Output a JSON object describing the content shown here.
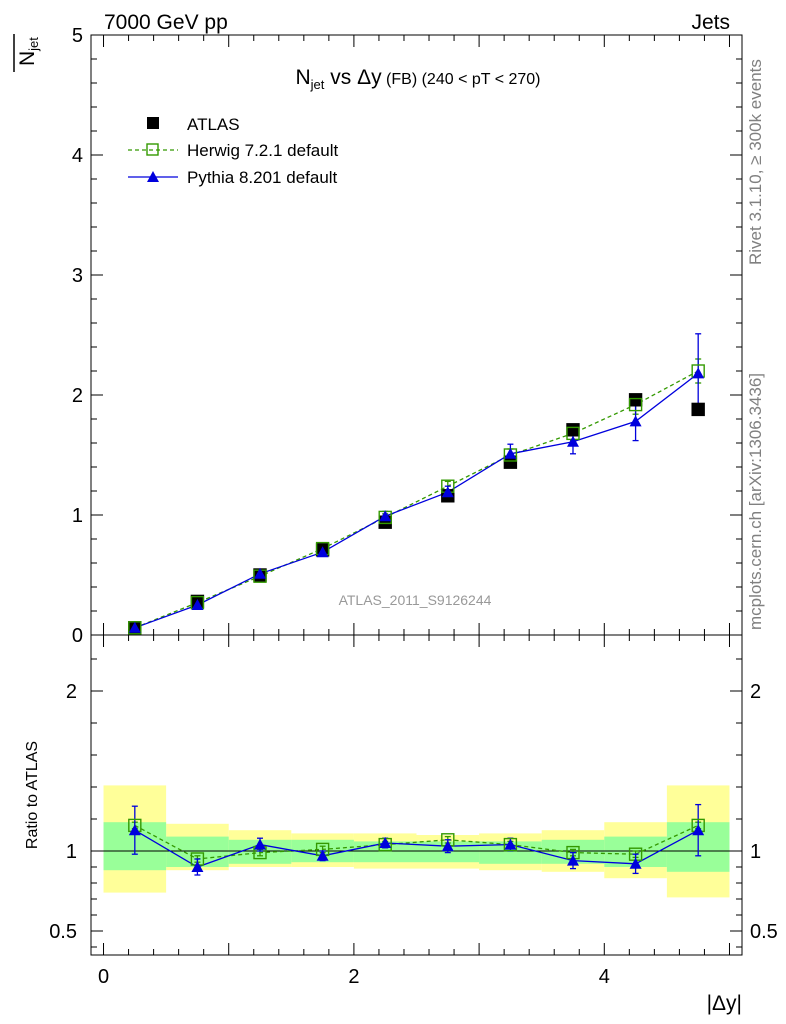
{
  "header": {
    "left": "7000 GeV pp",
    "right": "Jets"
  },
  "title": {
    "main": "N",
    "main_sub": "jet",
    "vs": " vs Δy",
    "small": " (FB) (240 < pT < 270)"
  },
  "ylabel_top": {
    "main": "N",
    "sub": "jet"
  },
  "ylabel_ratio": "Ratio to ATLAS",
  "xlabel": "|Δy|",
  "side_text_top": "Rivet 3.1.10, ≥ 300k events",
  "side_text_bottom": "mcplots.cern.ch [arXiv:1306.3436]",
  "watermark": "ATLAS_2011_S9126244",
  "legend": [
    {
      "label": "ATLAS"
    },
    {
      "label": "Herwig 7.2.1 default"
    },
    {
      "label": "Pythia 8.201 default"
    }
  ],
  "colors": {
    "atlas": "#000000",
    "herwig": "#339900",
    "pythia": "#0000dd",
    "band_outer": "#ffff99",
    "band_inner": "#99ff99"
  },
  "chart_data": {
    "type": "scatter",
    "x_edges": [
      0,
      0.5,
      1,
      1.5,
      2,
      2.5,
      3,
      3.5,
      4,
      4.5,
      5
    ],
    "x": [
      0.25,
      0.75,
      1.25,
      1.75,
      2.25,
      2.75,
      3.25,
      3.75,
      4.25,
      4.75
    ],
    "xlim": [
      -0.1,
      5.1
    ],
    "top_panel": {
      "ylim": [
        0,
        5
      ],
      "yticks": [
        "0",
        "1",
        "2",
        "3",
        "4",
        "5"
      ],
      "series": [
        {
          "name": "ATLAS",
          "values": [
            0.06,
            0.28,
            0.5,
            0.71,
            0.94,
            1.16,
            1.44,
            1.71,
            1.96,
            1.88
          ]
        },
        {
          "name": "Herwig 7.2.1 default",
          "values": [
            0.06,
            0.27,
            0.49,
            0.72,
            0.98,
            1.24,
            1.5,
            1.68,
            1.92,
            2.2
          ],
          "errors": [
            0.01,
            0.01,
            0.01,
            0.02,
            0.03,
            0.04,
            0.05,
            0.06,
            0.08,
            0.1
          ]
        },
        {
          "name": "Pythia 8.201 default",
          "values": [
            0.06,
            0.25,
            0.51,
            0.69,
            0.99,
            1.19,
            1.51,
            1.61,
            1.78,
            2.18
          ],
          "errors": [
            0.01,
            0.02,
            0.02,
            0.03,
            0.04,
            0.05,
            0.08,
            0.1,
            0.16,
            0.33
          ]
        }
      ]
    },
    "ratio_panel": {
      "ylim": [
        0.35,
        2.35
      ],
      "yticks": [
        "0.5",
        "1",
        "2"
      ],
      "band_outer": [
        [
          0.74,
          1.41
        ],
        [
          0.88,
          1.17
        ],
        [
          0.9,
          1.13
        ],
        [
          0.9,
          1.11
        ],
        [
          0.89,
          1.11
        ],
        [
          0.89,
          1.1
        ],
        [
          0.88,
          1.11
        ],
        [
          0.87,
          1.13
        ],
        [
          0.83,
          1.18
        ],
        [
          0.71,
          1.41
        ]
      ],
      "band_inner": [
        [
          0.88,
          1.18
        ],
        [
          0.9,
          1.09
        ],
        [
          0.92,
          1.07
        ],
        [
          0.93,
          1.07
        ],
        [
          0.93,
          1.06
        ],
        [
          0.93,
          1.06
        ],
        [
          0.92,
          1.06
        ],
        [
          0.92,
          1.07
        ],
        [
          0.9,
          1.09
        ],
        [
          0.87,
          1.18
        ]
      ],
      "series": [
        {
          "name": "Herwig 7.2.1 default",
          "values": [
            1.16,
            0.95,
            0.99,
            1.01,
            1.04,
            1.07,
            1.04,
            0.99,
            0.98,
            1.16
          ],
          "errors": [
            0.02,
            0.02,
            0.02,
            0.02,
            0.02,
            0.02,
            0.02,
            0.02,
            0.02,
            0.02
          ]
        },
        {
          "name": "Pythia 8.201 default",
          "values": [
            1.13,
            0.9,
            1.04,
            0.97,
            1.05,
            1.03,
            1.04,
            0.94,
            0.92,
            1.13
          ],
          "errors": [
            0.15,
            0.05,
            0.04,
            0.03,
            0.03,
            0.04,
            0.04,
            0.05,
            0.06,
            0.16
          ]
        }
      ]
    },
    "xticks": [
      "0",
      "2",
      "4"
    ]
  }
}
